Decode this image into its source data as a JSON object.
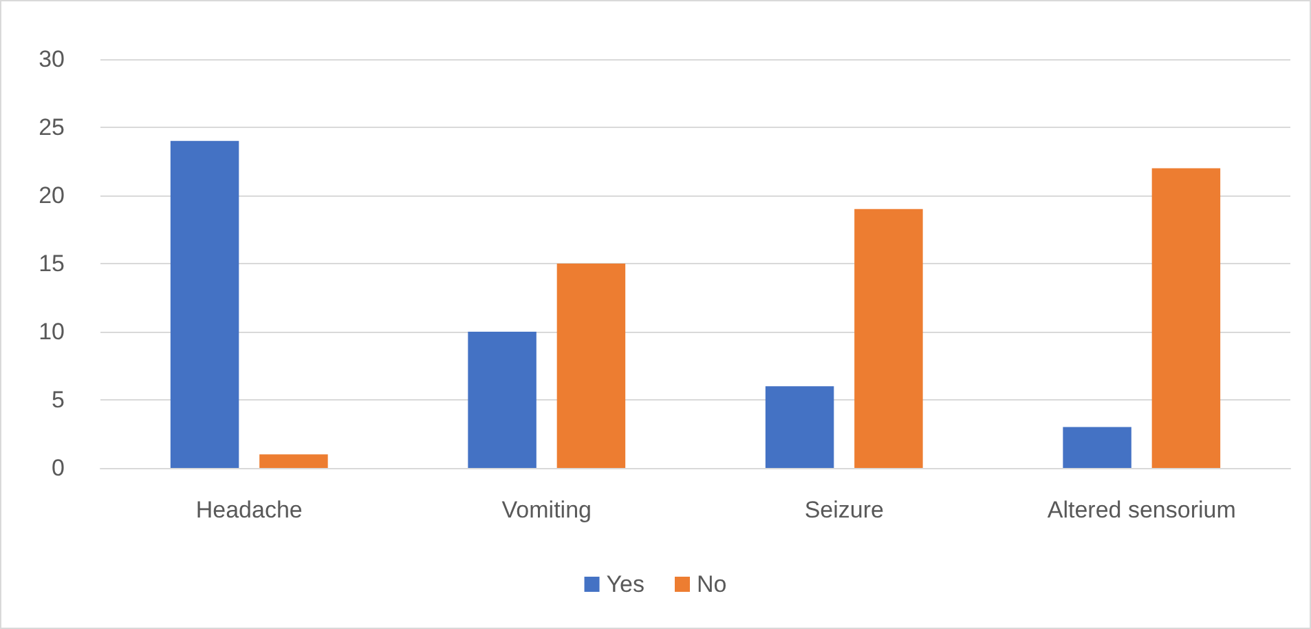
{
  "chart_data": {
    "type": "bar",
    "categories": [
      "Headache",
      "Vomiting",
      "Seizure",
      "Altered sensorium"
    ],
    "series": [
      {
        "name": "Yes",
        "color": "#4472c4",
        "values": [
          24,
          10,
          6,
          3
        ]
      },
      {
        "name": "No",
        "color": "#ed7d31",
        "values": [
          1,
          15,
          19,
          22
        ]
      }
    ],
    "ylim": [
      0,
      30
    ],
    "yticks": [
      0,
      5,
      10,
      15,
      20,
      25,
      30
    ],
    "grid": "y",
    "legend": "bottom"
  }
}
